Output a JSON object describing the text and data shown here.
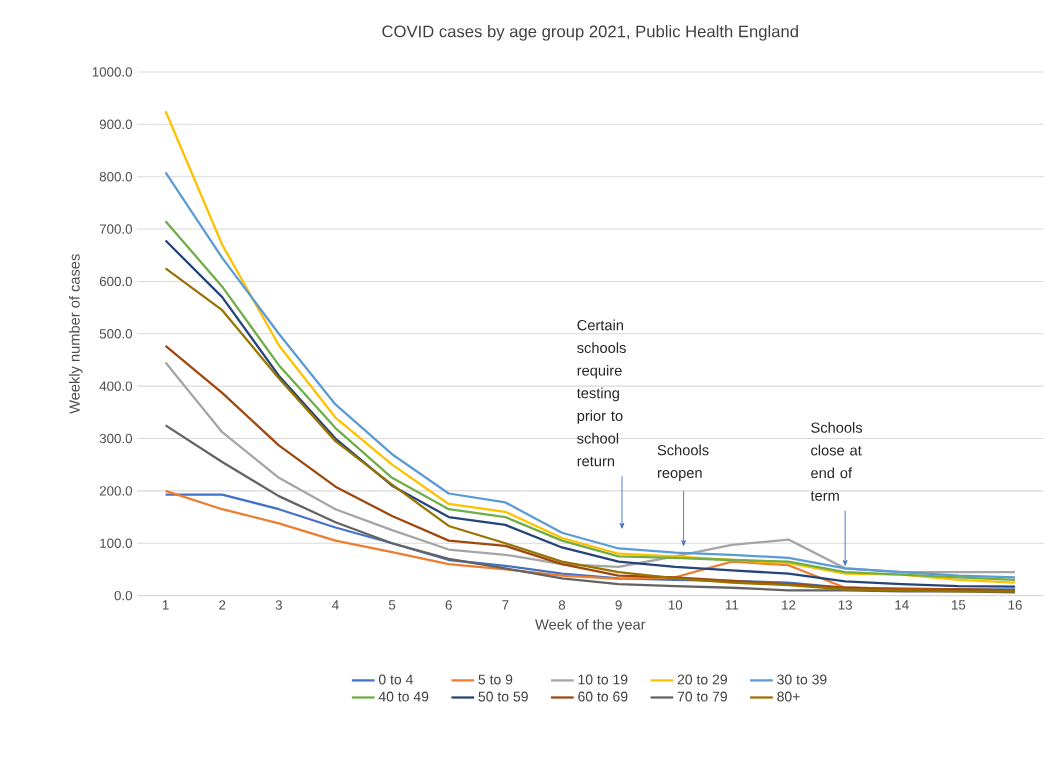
{
  "chart_data": {
    "type": "line",
    "title": "COVID cases by age group 2021, Public Health England",
    "xlabel": "Week of the year",
    "ylabel": "Weekly number of cases",
    "x": [
      1,
      2,
      3,
      4,
      5,
      6,
      7,
      8,
      9,
      10,
      11,
      12,
      13,
      14,
      15,
      16
    ],
    "xlim": [
      0.5,
      16.5
    ],
    "xticks": [
      1,
      2,
      3,
      4,
      5,
      6,
      7,
      8,
      9,
      10,
      11,
      12,
      13,
      14,
      15,
      16
    ],
    "ylim": [
      0,
      1000
    ],
    "yticks": [
      {
        "value": 0,
        "label": "0.0"
      },
      {
        "value": 100,
        "label": "100.0"
      },
      {
        "value": 200,
        "label": "200.0"
      },
      {
        "value": 300,
        "label": "300.0"
      },
      {
        "value": 400,
        "label": "400.0"
      },
      {
        "value": 500,
        "label": "500.0"
      },
      {
        "value": 600,
        "label": "600.0"
      },
      {
        "value": 700,
        "label": "700.0"
      },
      {
        "value": 800,
        "label": "800.0"
      },
      {
        "value": 900,
        "label": "900.0"
      },
      {
        "value": 1000,
        "label": "1000.0"
      }
    ],
    "grid": "y",
    "legend": "bottom",
    "marker": "none",
    "line_style": "solid",
    "series": [
      {
        "name": "0 to 4",
        "color": "#4472c4",
        "values": [
          193,
          193,
          165,
          130,
          100,
          68,
          57,
          42,
          33,
          30,
          28,
          25,
          15,
          13,
          12,
          12
        ]
      },
      {
        "name": "5 to 9",
        "color": "#ed7d31",
        "values": [
          200,
          165,
          138,
          105,
          83,
          60,
          50,
          38,
          32,
          35,
          65,
          58,
          15,
          14,
          12,
          10
        ]
      },
      {
        "name": "10 to 19",
        "color": "#a5a5a5",
        "values": [
          445,
          312,
          225,
          165,
          125,
          88,
          78,
          60,
          55,
          75,
          97,
          107,
          52,
          45,
          45,
          45
        ]
      },
      {
        "name": "20 to 29",
        "color": "#ffc000",
        "values": [
          925,
          670,
          478,
          340,
          250,
          175,
          160,
          110,
          80,
          75,
          68,
          62,
          42,
          40,
          30,
          25
        ]
      },
      {
        "name": "30 to 39",
        "color": "#5b9bd5",
        "values": [
          808,
          645,
          500,
          365,
          270,
          195,
          178,
          120,
          90,
          82,
          78,
          72,
          52,
          45,
          38,
          35
        ]
      },
      {
        "name": "40 to 49",
        "color": "#70ad47",
        "values": [
          715,
          590,
          440,
          320,
          225,
          165,
          150,
          105,
          75,
          72,
          68,
          65,
          45,
          40,
          35,
          30
        ]
      },
      {
        "name": "50 to 59",
        "color": "#264478",
        "values": [
          678,
          570,
          420,
          300,
          210,
          150,
          135,
          92,
          65,
          55,
          48,
          42,
          27,
          22,
          18,
          17
        ]
      },
      {
        "name": "60 to 69",
        "color": "#9e480e",
        "values": [
          477,
          387,
          287,
          208,
          152,
          105,
          95,
          60,
          38,
          35,
          28,
          22,
          15,
          12,
          12,
          10
        ]
      },
      {
        "name": "70 to 79",
        "color": "#636363",
        "values": [
          325,
          255,
          190,
          140,
          100,
          70,
          52,
          33,
          22,
          18,
          15,
          10,
          10,
          8,
          8,
          6
        ]
      },
      {
        "name": "80+",
        "color": "#997300",
        "values": [
          625,
          545,
          415,
          295,
          212,
          133,
          100,
          65,
          45,
          33,
          25,
          20,
          12,
          10,
          8,
          8
        ]
      }
    ],
    "annotations": [
      "Certain schools require testing prior to school return",
      "Schools reopen",
      {
        "text": "Schools close at end of term",
        "x": 13,
        "y": 55
      }
    ]
  }
}
